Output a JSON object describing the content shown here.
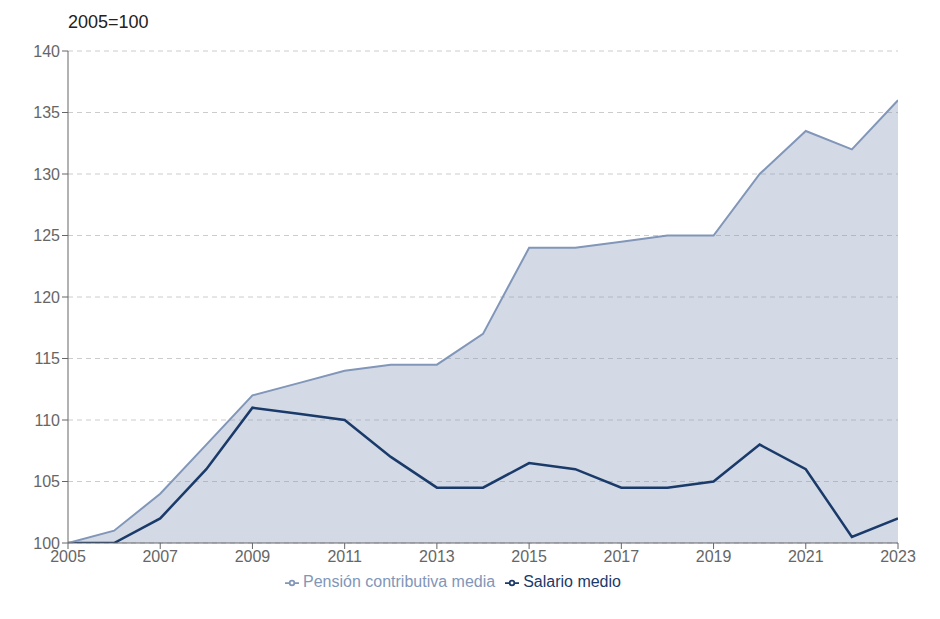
{
  "chart_data": {
    "type": "line",
    "title": "2005=100",
    "x": [
      2005,
      2006,
      2007,
      2008,
      2009,
      2010,
      2011,
      2012,
      2013,
      2014,
      2015,
      2016,
      2017,
      2018,
      2019,
      2020,
      2021,
      2022,
      2023
    ],
    "series": [
      {
        "name": "Salario medio",
        "color": "#1a3a6a",
        "values": [
          100,
          100,
          102,
          106,
          111,
          110.5,
          110,
          107,
          104.5,
          104.5,
          106.5,
          106,
          104.5,
          104.5,
          105,
          108,
          106,
          100.5,
          102
        ]
      },
      {
        "name": "Pensión contributiva media",
        "color": "#8196b8",
        "type": "area",
        "values": [
          100,
          101,
          104,
          108,
          112,
          113,
          114,
          114.5,
          114.5,
          117,
          124,
          124,
          124.5,
          125,
          125,
          130,
          133.5,
          132,
          136
        ]
      }
    ],
    "xlim": [
      2005,
      2023
    ],
    "xticks": [
      2005,
      2007,
      2009,
      2011,
      2013,
      2015,
      2017,
      2019,
      2021,
      2023
    ],
    "ylim": [
      100,
      140
    ],
    "yticks": [
      100,
      105,
      110,
      115,
      120,
      125,
      130,
      135,
      140
    ],
    "grid": true,
    "legend": "bottom"
  }
}
